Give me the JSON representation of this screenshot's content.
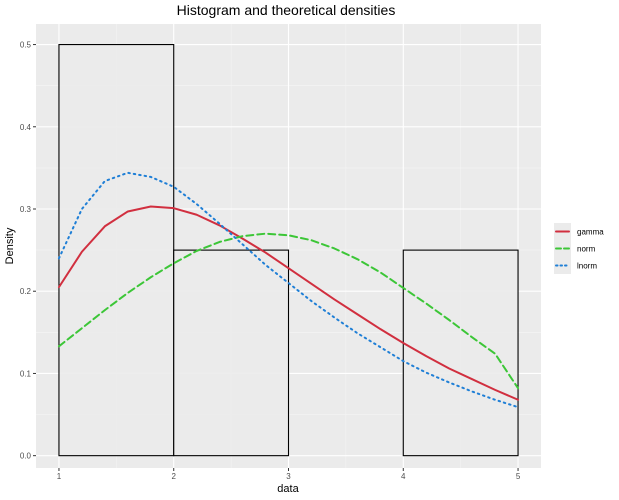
{
  "chart_data": {
    "type": "histogram",
    "title": "Histogram and theoretical densities",
    "xlabel": "data",
    "ylabel": "Density",
    "xlim": [
      0.8,
      5.2
    ],
    "ylim": [
      -0.015,
      0.525
    ],
    "x_ticks": [
      1,
      2,
      3,
      4,
      5
    ],
    "y_ticks": [
      0.0,
      0.1,
      0.2,
      0.3,
      0.4,
      0.5
    ],
    "y_tick_labels": [
      "0.0",
      "0.1",
      "0.2",
      "0.3",
      "0.4",
      "0.5"
    ],
    "grid": true,
    "legend_position": "right",
    "bars": [
      {
        "x0": 1,
        "x1": 2,
        "density": 0.5
      },
      {
        "x0": 2,
        "x1": 3,
        "density": 0.25
      },
      {
        "x0": 3,
        "x1": 4,
        "density": 0.0
      },
      {
        "x0": 4,
        "x1": 5,
        "density": 0.25
      }
    ],
    "series": [
      {
        "name": "gamma",
        "color": "#d12f3f",
        "dash": "solid",
        "x": [
          1.0,
          1.2,
          1.4,
          1.6,
          1.8,
          2.0,
          2.2,
          2.4,
          2.6,
          2.8,
          3.0,
          3.2,
          3.4,
          3.6,
          3.8,
          4.0,
          4.2,
          4.4,
          4.6,
          4.8,
          5.0
        ],
        "y": [
          0.205,
          0.248,
          0.279,
          0.297,
          0.303,
          0.301,
          0.293,
          0.28,
          0.264,
          0.247,
          0.228,
          0.209,
          0.19,
          0.172,
          0.154,
          0.137,
          0.121,
          0.106,
          0.093,
          0.08,
          0.068
        ]
      },
      {
        "name": "norm",
        "color": "#3cc637",
        "dash": "dashed",
        "x": [
          1.0,
          1.2,
          1.4,
          1.6,
          1.8,
          2.0,
          2.2,
          2.4,
          2.6,
          2.8,
          3.0,
          3.2,
          3.4,
          3.6,
          3.8,
          4.0,
          4.2,
          4.4,
          4.6,
          4.8,
          5.0
        ],
        "y": [
          0.133,
          0.155,
          0.177,
          0.198,
          0.217,
          0.234,
          0.249,
          0.26,
          0.267,
          0.27,
          0.268,
          0.262,
          0.252,
          0.239,
          0.223,
          0.204,
          0.185,
          0.165,
          0.144,
          0.124,
          0.082
        ]
      },
      {
        "name": "lnorm",
        "color": "#1f7fd6",
        "dash": "dotted",
        "x": [
          1.0,
          1.2,
          1.4,
          1.6,
          1.8,
          2.0,
          2.2,
          2.4,
          2.6,
          2.8,
          3.0,
          3.2,
          3.4,
          3.6,
          3.8,
          4.0,
          4.2,
          4.4,
          4.6,
          4.8,
          5.0
        ],
        "y": [
          0.24,
          0.3,
          0.334,
          0.344,
          0.339,
          0.327,
          0.306,
          0.282,
          0.257,
          0.232,
          0.21,
          0.188,
          0.168,
          0.149,
          0.132,
          0.115,
          0.101,
          0.089,
          0.078,
          0.068,
          0.059
        ]
      }
    ]
  }
}
